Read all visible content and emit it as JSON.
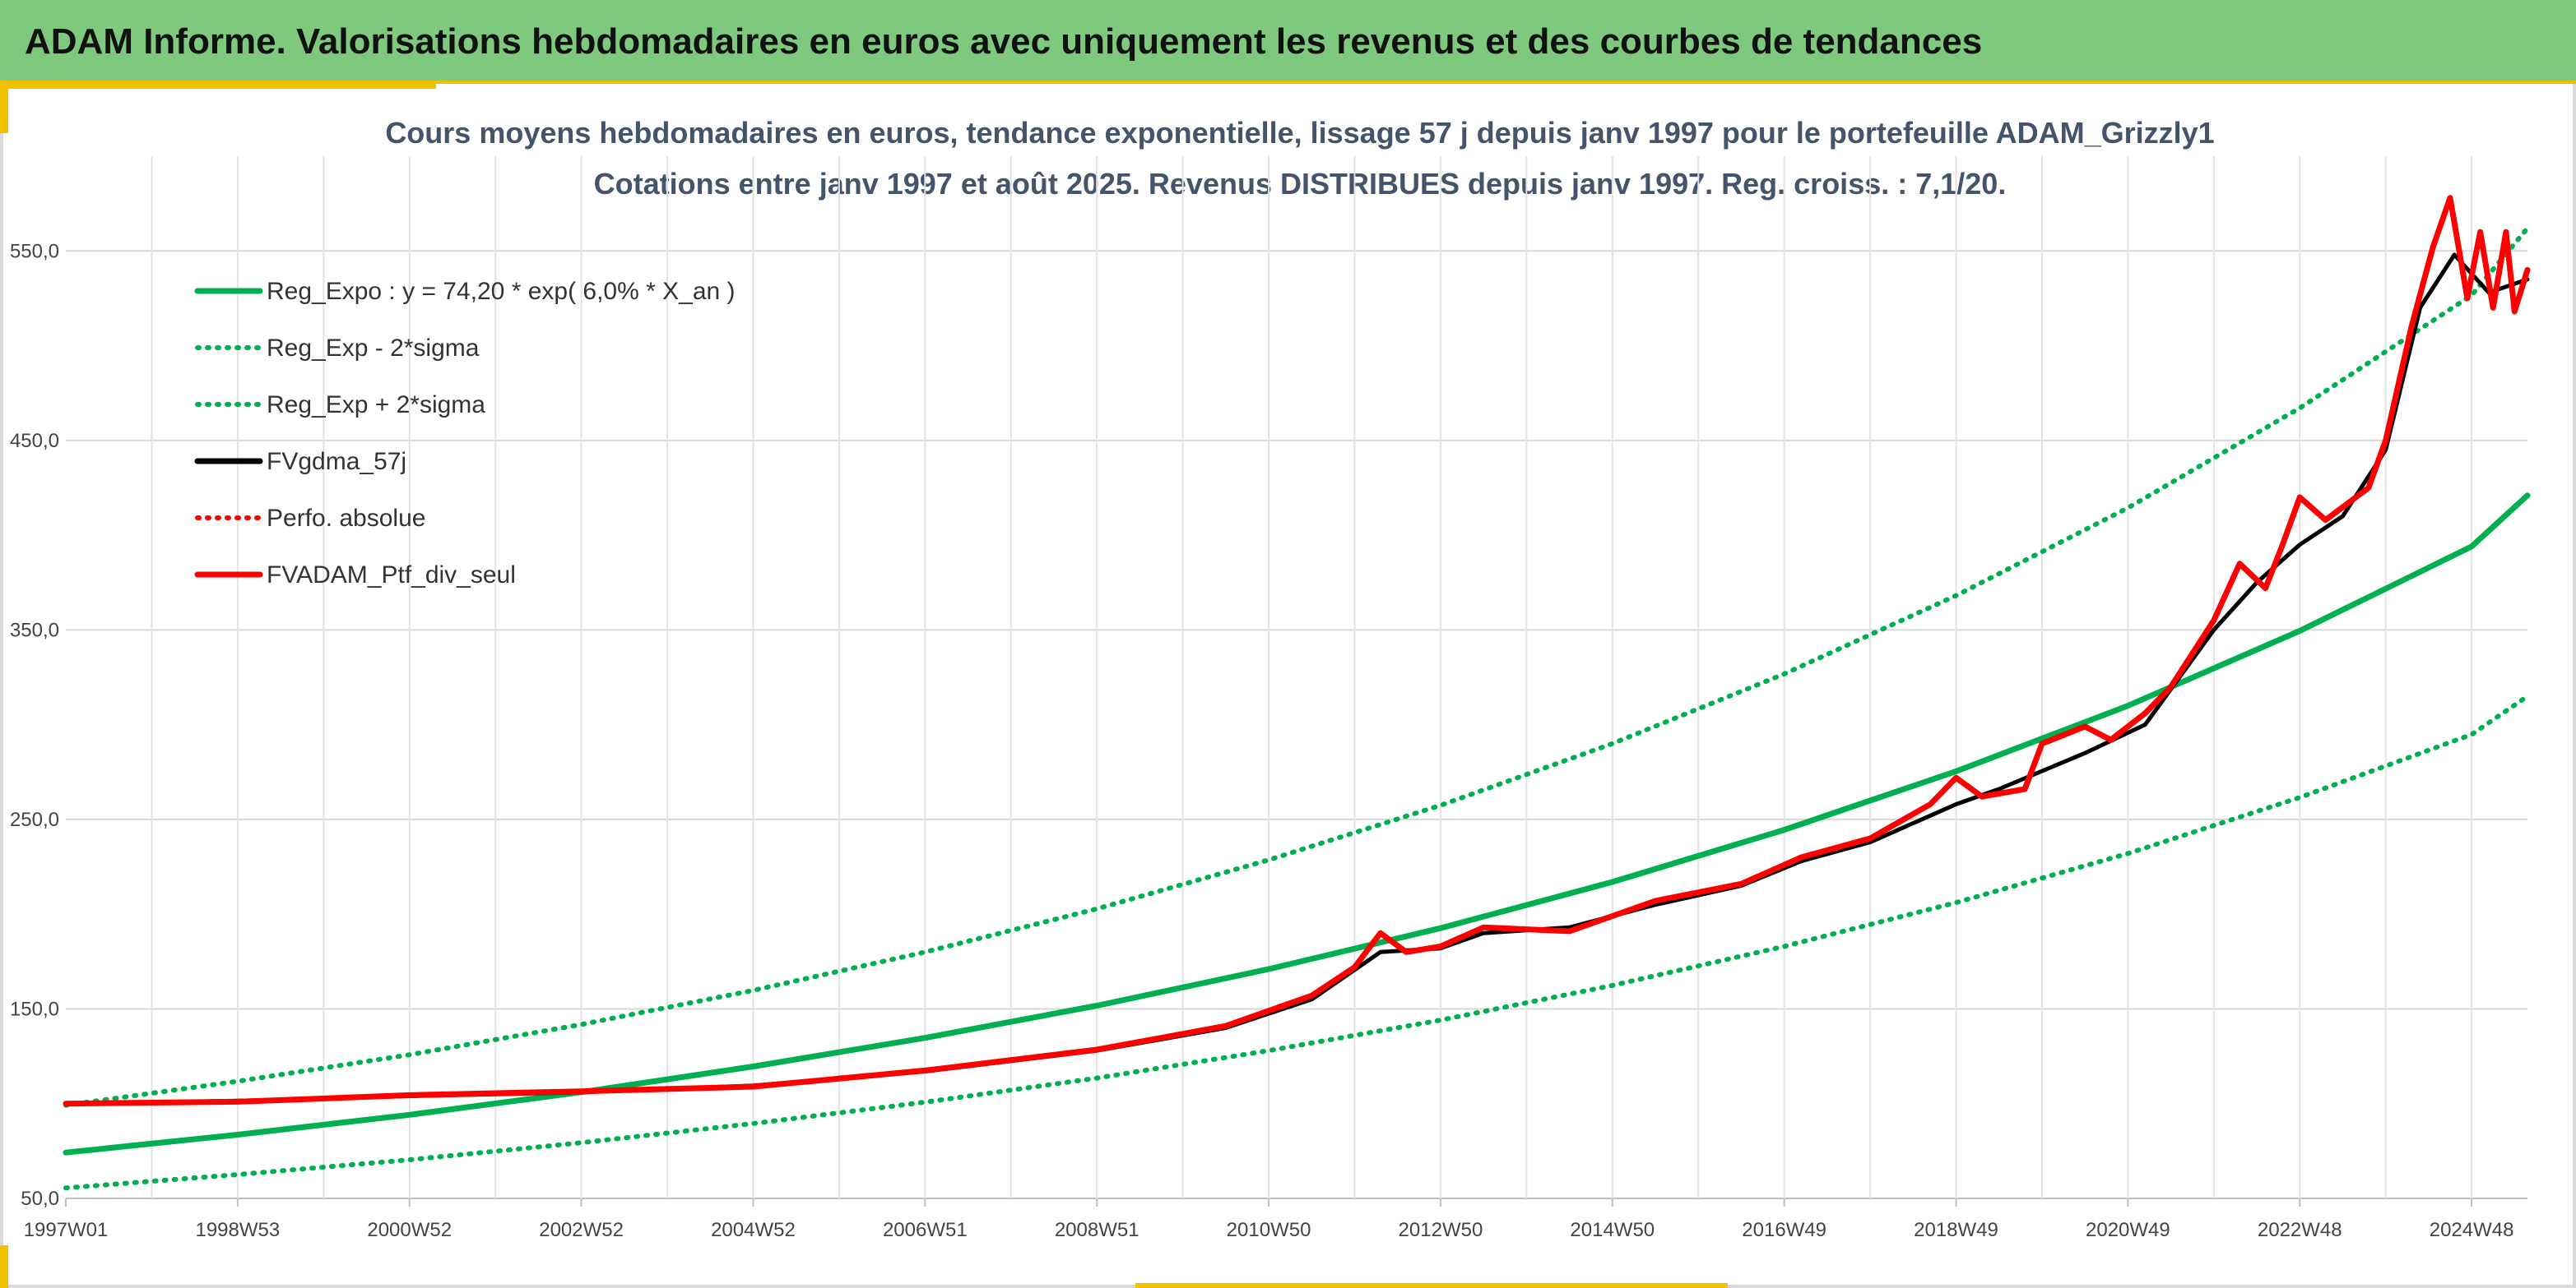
{
  "header": {
    "title": "ADAM Informe. Valorisations hebdomadaires en euros avec uniquement les revenus et des courbes de tendances"
  },
  "colors": {
    "header_bg": "#7ec97e",
    "accent": "#f2c200",
    "green": "#00b050",
    "red": "#ff0000",
    "black": "#000000"
  },
  "chart_data": {
    "type": "line",
    "title": "Cours moyens hebdomadaires en euros, tendance exponentielle, lissage 57 j depuis janv 1997 pour le portefeuille ADAM_Grizzly1",
    "subtitle": "Cotations entre janv 1997 et août 2025. Revenus DISTRIBUES depuis janv 1997. Reg. croiss. : 7,1/20.",
    "xlabel": "",
    "ylabel": "",
    "x_range_years": [
      1997.0,
      2025.65
    ],
    "ylim": [
      50,
      600
    ],
    "y_ticks": [
      "50,0",
      "150,0",
      "250,0",
      "350,0",
      "450,0",
      "550,0"
    ],
    "x_ticks": [
      {
        "label": "1997W01",
        "year": 1997.0
      },
      {
        "label": "1998W53",
        "year": 1999.0
      },
      {
        "label": "2000W52",
        "year": 2001.0
      },
      {
        "label": "2002W52",
        "year": 2003.0
      },
      {
        "label": "2004W52",
        "year": 2005.0
      },
      {
        "label": "2006W51",
        "year": 2007.0
      },
      {
        "label": "2008W51",
        "year": 2009.0
      },
      {
        "label": "2010W50",
        "year": 2011.0
      },
      {
        "label": "2012W50",
        "year": 2013.0
      },
      {
        "label": "2014W50",
        "year": 2015.0
      },
      {
        "label": "2016W49",
        "year": 2017.0
      },
      {
        "label": "2018W49",
        "year": 2019.0
      },
      {
        "label": "2020W49",
        "year": 2021.0
      },
      {
        "label": "2022W48",
        "year": 2023.0
      },
      {
        "label": "2024W48",
        "year": 2025.0
      }
    ],
    "grid": true,
    "legend_position": "top-left",
    "series": [
      {
        "name": "Reg_Expo : y = 74,20 * exp( 6,0% *  X_an )",
        "style": "solid",
        "color": "#00b050",
        "points": [
          [
            1997.0,
            74.2
          ],
          [
            1999.0,
            83.6
          ],
          [
            2001.0,
            94.1
          ],
          [
            2003.0,
            106.1
          ],
          [
            2005.0,
            119.6
          ],
          [
            2007.0,
            134.7
          ],
          [
            2009.0,
            151.7
          ],
          [
            2011.0,
            171.0
          ],
          [
            2013.0,
            192.6
          ],
          [
            2015.0,
            217.0
          ],
          [
            2017.0,
            244.5
          ],
          [
            2019.0,
            275.4
          ],
          [
            2021.0,
            310.0
          ],
          [
            2023.0,
            349.5
          ],
          [
            2025.0,
            394.0
          ],
          [
            2025.65,
            421.0
          ]
        ]
      },
      {
        "name": "Reg_Exp - 2*sigma",
        "style": "dotted",
        "color": "#00b050",
        "points": [
          [
            1997.0,
            55.5
          ],
          [
            1999.0,
            62.6
          ],
          [
            2001.0,
            70.4
          ],
          [
            2003.0,
            79.4
          ],
          [
            2005.0,
            89.5
          ],
          [
            2007.0,
            100.8
          ],
          [
            2009.0,
            113.5
          ],
          [
            2011.0,
            128.0
          ],
          [
            2013.0,
            144.1
          ],
          [
            2015.0,
            162.4
          ],
          [
            2017.0,
            183.0
          ],
          [
            2019.0,
            206.1
          ],
          [
            2021.0,
            232.0
          ],
          [
            2023.0,
            261.6
          ],
          [
            2025.0,
            294.8
          ],
          [
            2025.65,
            315.0
          ]
        ]
      },
      {
        "name": "Reg_Exp + 2*sigma",
        "style": "dotted",
        "color": "#00b050",
        "points": [
          [
            1997.0,
            99.2
          ],
          [
            1999.0,
            111.8
          ],
          [
            2001.0,
            125.8
          ],
          [
            2003.0,
            141.8
          ],
          [
            2005.0,
            159.8
          ],
          [
            2007.0,
            180.0
          ],
          [
            2009.0,
            202.8
          ],
          [
            2011.0,
            228.6
          ],
          [
            2013.0,
            257.4
          ],
          [
            2015.0,
            290.0
          ],
          [
            2017.0,
            326.8
          ],
          [
            2019.0,
            368.1
          ],
          [
            2021.0,
            414.4
          ],
          [
            2023.0,
            467.1
          ],
          [
            2025.0,
            526.6
          ],
          [
            2025.65,
            562.0
          ]
        ]
      },
      {
        "name": "FVgdma_57j",
        "style": "solid",
        "color": "#000000",
        "points": [
          [
            1997.0,
            100.0
          ],
          [
            1999.0,
            101.5
          ],
          [
            2001.0,
            104.0
          ],
          [
            2003.0,
            106.0
          ],
          [
            2005.0,
            109.5
          ],
          [
            2007.0,
            117.0
          ],
          [
            2009.0,
            128.0
          ],
          [
            2010.5,
            140.0
          ],
          [
            2011.5,
            155.0
          ],
          [
            2012.3,
            180.0
          ],
          [
            2013.0,
            182.0
          ],
          [
            2013.5,
            190.0
          ],
          [
            2014.5,
            193.0
          ],
          [
            2015.5,
            205.0
          ],
          [
            2016.5,
            215.0
          ],
          [
            2017.2,
            228.0
          ],
          [
            2018.0,
            238.0
          ],
          [
            2019.0,
            258.0
          ],
          [
            2019.5,
            266.0
          ],
          [
            2020.5,
            285.0
          ],
          [
            2021.2,
            300.0
          ],
          [
            2022.0,
            350.0
          ],
          [
            2022.5,
            375.0
          ],
          [
            2023.0,
            395.0
          ],
          [
            2023.5,
            410.0
          ],
          [
            2024.0,
            445.0
          ],
          [
            2024.4,
            520.0
          ],
          [
            2024.8,
            548.0
          ],
          [
            2025.2,
            528.0
          ],
          [
            2025.65,
            535.0
          ]
        ]
      },
      {
        "name": "Perfo. absolue",
        "style": "dotted",
        "color": "#ff0000",
        "points": []
      },
      {
        "name": "FVADAM_Ptf_div_seul",
        "style": "solid",
        "color": "#ff0000",
        "points": [
          [
            1997.0,
            100.0
          ],
          [
            1999.0,
            101.0
          ],
          [
            2001.0,
            104.5
          ],
          [
            2003.0,
            106.5
          ],
          [
            2005.0,
            109.0
          ],
          [
            2007.0,
            117.5
          ],
          [
            2009.0,
            128.5
          ],
          [
            2010.5,
            141.0
          ],
          [
            2011.5,
            157.0
          ],
          [
            2012.0,
            172.0
          ],
          [
            2012.3,
            190.0
          ],
          [
            2012.6,
            180.0
          ],
          [
            2013.0,
            183.0
          ],
          [
            2013.5,
            193.0
          ],
          [
            2014.5,
            191.0
          ],
          [
            2015.5,
            207.0
          ],
          [
            2016.5,
            216.0
          ],
          [
            2017.2,
            230.0
          ],
          [
            2018.0,
            240.0
          ],
          [
            2018.7,
            258.0
          ],
          [
            2019.0,
            272.0
          ],
          [
            2019.3,
            262.0
          ],
          [
            2019.8,
            266.0
          ],
          [
            2020.0,
            290.0
          ],
          [
            2020.5,
            299.0
          ],
          [
            2020.8,
            292.0
          ],
          [
            2021.2,
            306.0
          ],
          [
            2021.5,
            320.0
          ],
          [
            2022.0,
            355.0
          ],
          [
            2022.3,
            385.0
          ],
          [
            2022.6,
            372.0
          ],
          [
            2022.8,
            395.0
          ],
          [
            2023.0,
            420.0
          ],
          [
            2023.3,
            408.0
          ],
          [
            2023.8,
            425.0
          ],
          [
            2024.0,
            450.0
          ],
          [
            2024.3,
            510.0
          ],
          [
            2024.55,
            552.0
          ],
          [
            2024.75,
            578.0
          ],
          [
            2024.95,
            525.0
          ],
          [
            2025.1,
            560.0
          ],
          [
            2025.25,
            520.0
          ],
          [
            2025.4,
            560.0
          ],
          [
            2025.5,
            518.0
          ],
          [
            2025.65,
            540.0
          ]
        ]
      }
    ]
  }
}
